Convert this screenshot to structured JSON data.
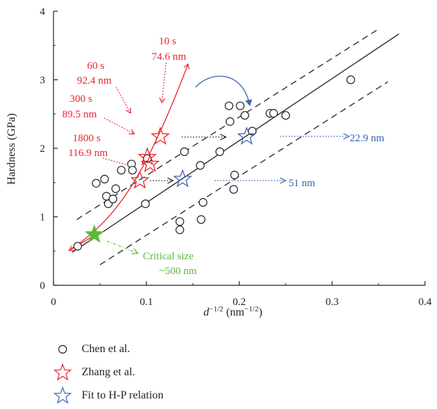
{
  "chart_data": {
    "type": "scatter",
    "xlabel_main": "d",
    "xlabel_sup": "−1/2",
    "xlabel_unit": " (nm",
    "xlabel_unit_sup": "−1/2",
    "xlabel_close": ")",
    "ylabel": "Hardness (GPa)",
    "xlim": [
      0,
      0.4
    ],
    "ylim": [
      0,
      4
    ],
    "xticks": [
      0,
      0.1,
      0.2,
      0.3,
      0.4
    ],
    "xtick_labels": [
      "0",
      "0.1",
      "0.2",
      "0.3",
      "0.4"
    ],
    "yticks": [
      0,
      1,
      2,
      3,
      4
    ],
    "ytick_labels": [
      "0",
      "1",
      "2",
      "3",
      "4"
    ],
    "fit_line": {
      "x": [
        0.02,
        0.372
      ],
      "y": [
        0.48,
        3.67
      ]
    },
    "upper_band": {
      "x": [
        0.025,
        0.35
      ],
      "y": [
        0.96,
        3.74
      ]
    },
    "lower_band": {
      "x": [
        0.05,
        0.36
      ],
      "y": [
        0.3,
        2.97
      ]
    },
    "series": [
      {
        "name": "Chen et al.",
        "marker": "circle",
        "color": "#222222",
        "points": [
          [
            0.026,
            0.57
          ],
          [
            0.046,
            1.49
          ],
          [
            0.055,
            1.55
          ],
          [
            0.057,
            1.3
          ],
          [
            0.059,
            1.19
          ],
          [
            0.064,
            1.26
          ],
          [
            0.067,
            1.41
          ],
          [
            0.073,
            1.68
          ],
          [
            0.084,
            1.77
          ],
          [
            0.085,
            1.68
          ],
          [
            0.099,
            1.19
          ],
          [
            0.101,
            1.85
          ],
          [
            0.136,
            0.93
          ],
          [
            0.136,
            0.81
          ],
          [
            0.141,
            1.95
          ],
          [
            0.158,
            1.75
          ],
          [
            0.159,
            0.96
          ],
          [
            0.161,
            1.21
          ],
          [
            0.179,
            1.95
          ],
          [
            0.189,
            2.62
          ],
          [
            0.19,
            2.39
          ],
          [
            0.194,
            1.4
          ],
          [
            0.195,
            1.61
          ],
          [
            0.201,
            2.62
          ],
          [
            0.206,
            2.48
          ],
          [
            0.214,
            2.25
          ],
          [
            0.233,
            2.51
          ],
          [
            0.237,
            2.51
          ],
          [
            0.25,
            2.48
          ],
          [
            0.32,
            3.0
          ]
        ]
      },
      {
        "name": "Zhang et al.",
        "marker": "star-open",
        "color": "#e8262b",
        "points": [
          [
            0.093,
            1.53
          ],
          [
            0.101,
            1.87
          ],
          [
            0.104,
            1.77
          ],
          [
            0.115,
            2.17
          ]
        ]
      },
      {
        "name": "Fit to H-P relation",
        "marker": "star-open",
        "color": "#3a64b0",
        "points": [
          [
            0.139,
            1.55
          ],
          [
            0.208,
            2.17
          ]
        ]
      }
    ],
    "critical_point": {
      "x": 0.044,
      "y": 0.74,
      "color": "#5cb83a"
    },
    "curve_color": "#e8262b",
    "annotations": {
      "t10": "10 s",
      "s10": "74.6 nm",
      "t60": "60 s",
      "s60": "92.4 nm",
      "t300": "300 s",
      "s300": "89.5 nm",
      "t1800": "1800 s",
      "s1800": "116.9 nm",
      "blue_229": "22.9 nm",
      "blue_51": "51 nm",
      "critical_1": "Critical size",
      "critical_2": "~500 nm"
    },
    "colors": {
      "red": "#e8262b",
      "blue": "#3a64b0",
      "green": "#5cb83a",
      "black": "#222222"
    }
  },
  "legend": [
    {
      "label": "Chen et al.",
      "marker": "circle",
      "color": "#222222"
    },
    {
      "label": "Zhang et al.",
      "marker": "star-open",
      "color": "#e8262b"
    },
    {
      "label": "Fit to H-P relation",
      "marker": "star-open",
      "color": "#3a64b0"
    }
  ]
}
